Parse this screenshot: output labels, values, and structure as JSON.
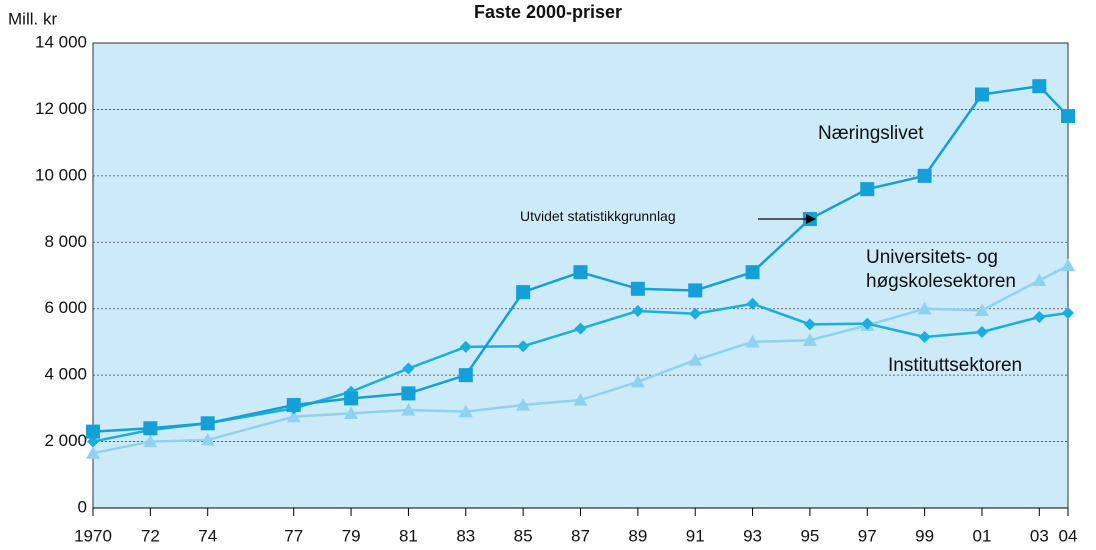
{
  "chart_data": {
    "type": "line",
    "title": "Faste 2000-priser",
    "y_label": "Mill. kr",
    "annotation": "Utvidet statistikkgrunnlag",
    "x": [
      1970,
      1972,
      1974,
      1977,
      1979,
      1981,
      1983,
      1985,
      1987,
      1989,
      1991,
      1993,
      1995,
      1997,
      1999,
      2001,
      2003,
      2004
    ],
    "xlim": [
      1970,
      2004
    ],
    "xticks": [
      1970,
      {
        "value": 1972,
        "label": "72"
      },
      {
        "value": 1974,
        "label": "74"
      },
      {
        "value": 1977,
        "label": "77"
      },
      {
        "value": 1979,
        "label": "79"
      },
      {
        "value": 1981,
        "label": "81"
      },
      {
        "value": 1983,
        "label": "83"
      },
      {
        "value": 1985,
        "label": "85"
      },
      {
        "value": 1987,
        "label": "87"
      },
      {
        "value": 1989,
        "label": "89"
      },
      {
        "value": 1991,
        "label": "91"
      },
      {
        "value": 1993,
        "label": "93"
      },
      {
        "value": 1995,
        "label": "95"
      },
      {
        "value": 1997,
        "label": "97"
      },
      {
        "value": 1999,
        "label": "99"
      },
      {
        "value": 2001,
        "label": "01"
      },
      {
        "value": 2003,
        "label": "03"
      },
      {
        "value": 2004,
        "label": "04"
      }
    ],
    "ylim": [
      0,
      14000
    ],
    "yticks": [
      0,
      {
        "value": 2000,
        "label": "2 000"
      },
      {
        "value": 4000,
        "label": "4 000"
      },
      {
        "value": 6000,
        "label": "6 000"
      },
      {
        "value": 8000,
        "label": "8 000"
      },
      {
        "value": 10000,
        "label": "10 000"
      },
      {
        "value": 12000,
        "label": "12 000"
      },
      {
        "value": 14000,
        "label": "14 000"
      }
    ],
    "grid": true,
    "series": [
      {
        "name": "Næringslivet",
        "color": "#139fd8",
        "marker": "square",
        "values": [
          2300,
          2400,
          2550,
          3100,
          3300,
          3450,
          4000,
          6500,
          7100,
          6600,
          6550,
          7100,
          8700,
          9600,
          10000,
          12450,
          12700,
          11800
        ]
      },
      {
        "name": "Universitets- og høgskolesektoren",
        "color": "#8ed2f0",
        "marker": "triangle",
        "values": [
          1650,
          2000,
          2050,
          2750,
          2850,
          2950,
          2900,
          3100,
          3250,
          3800,
          4450,
          5000,
          5050,
          5500,
          6000,
          5950,
          6850,
          7300
        ]
      },
      {
        "name": "Instituttsektoren",
        "color": "#18aee0",
        "marker": "diamond",
        "values": [
          2000,
          2350,
          2550,
          3000,
          3500,
          4200,
          4850,
          4870,
          5400,
          5930,
          5850,
          6150,
          5530,
          5550,
          5150,
          5300,
          5750,
          5870
        ]
      }
    ]
  }
}
